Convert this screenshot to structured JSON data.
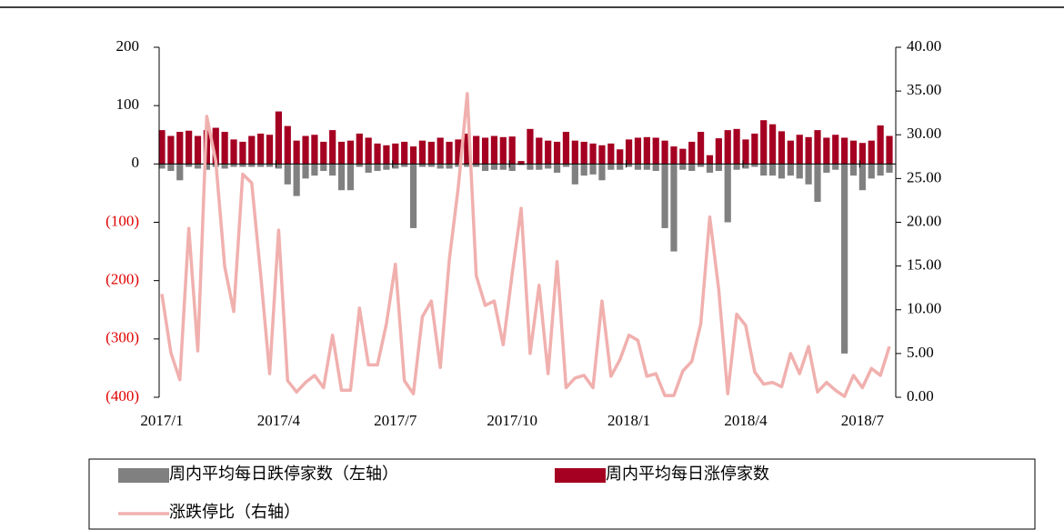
{
  "chart_data": {
    "type": "bar-line",
    "categories": [
      "2017/1",
      null,
      null,
      null,
      null,
      null,
      null,
      null,
      null,
      null,
      null,
      null,
      null,
      "2017/4",
      null,
      null,
      null,
      null,
      null,
      null,
      null,
      null,
      null,
      null,
      null,
      null,
      "2017/7",
      null,
      null,
      null,
      null,
      null,
      null,
      null,
      null,
      null,
      null,
      null,
      null,
      "2017/10",
      null,
      null,
      null,
      null,
      null,
      null,
      null,
      null,
      null,
      null,
      null,
      null,
      "2018/1",
      null,
      null,
      null,
      null,
      null,
      null,
      null,
      null,
      null,
      null,
      null,
      null,
      "2018/4",
      null,
      null,
      null,
      null,
      null,
      null,
      null,
      null,
      null,
      null,
      null,
      null,
      "2018/7",
      null,
      null,
      null
    ],
    "series": [
      {
        "name": "周内平均每日跌停家数（左轴）",
        "color": "#808080",
        "axis": "y",
        "kind": "bar",
        "values": [
          -8,
          -12,
          -28,
          -5,
          -8,
          -10,
          -5,
          -8,
          -5,
          -5,
          -5,
          -5,
          -5,
          -8,
          -35,
          -55,
          -25,
          -20,
          -12,
          -20,
          -45,
          -45,
          -5,
          -15,
          -12,
          -10,
          -8,
          -5,
          -110,
          -5,
          -5,
          -8,
          -8,
          -5,
          -5,
          -5,
          -12,
          -10,
          -10,
          -12,
          -2,
          -10,
          -10,
          -8,
          -15,
          -5,
          -35,
          -20,
          -18,
          -28,
          -10,
          -10,
          -5,
          -10,
          -10,
          -12,
          -110,
          -150,
          -10,
          -12,
          -5,
          -15,
          -12,
          -100,
          -10,
          -8,
          -5,
          -20,
          -20,
          -25,
          -20,
          -25,
          -35,
          -65,
          -15,
          -10,
          -325,
          -20,
          -45,
          -25,
          -20,
          -15
        ]
      },
      {
        "name": "周内平均每日涨停家数",
        "color": "#a50021",
        "axis": "y",
        "kind": "bar",
        "values": [
          58,
          48,
          55,
          57,
          48,
          58,
          62,
          55,
          42,
          38,
          48,
          52,
          50,
          90,
          65,
          40,
          48,
          50,
          38,
          58,
          38,
          40,
          52,
          45,
          35,
          32,
          35,
          38,
          30,
          40,
          38,
          45,
          38,
          42,
          52,
          48,
          45,
          48,
          46,
          47,
          5,
          60,
          45,
          40,
          38,
          55,
          40,
          38,
          35,
          32,
          35,
          25,
          42,
          45,
          46,
          45,
          40,
          30,
          26,
          38,
          55,
          15,
          44,
          58,
          60,
          42,
          52,
          75,
          68,
          56,
          40,
          50,
          46,
          58,
          45,
          50,
          45,
          40,
          36,
          40,
          66,
          48
        ]
      },
      {
        "name": "涨跌停比（右轴）",
        "color": "#f0b0ae",
        "axis": "y2",
        "kind": "line",
        "values": [
          11.8,
          5.1,
          2,
          19.3,
          5.3,
          32.1,
          27,
          14.9,
          9.8,
          25.5,
          24.5,
          14,
          2.7,
          19.1,
          1.9,
          0.6,
          1.7,
          2.5,
          1.1,
          7.1,
          0.8,
          0.8,
          10.2,
          3.7,
          3.7,
          8.4,
          15.2,
          1.9,
          0.4,
          9.2,
          11,
          3.4,
          15.7,
          24,
          34.7,
          13.9,
          10.5,
          11,
          6,
          14.1,
          21.6,
          5,
          12.8,
          2.7,
          15.5,
          1.1,
          2.2,
          2.5,
          1.1,
          11,
          2.4,
          4.3,
          7.1,
          6.5,
          2.4,
          2.7,
          0.2,
          0.2,
          3,
          4.1,
          8.4,
          20.6,
          12.3,
          0.4,
          9.5,
          8.2,
          2.9,
          1.5,
          1.7,
          1.2,
          5,
          2.7,
          5.8,
          0.6,
          1.7,
          0.8,
          0.1,
          2.5,
          1.1,
          3.3,
          2.5,
          5.8
        ]
      }
    ],
    "ylim": [
      -400,
      200
    ],
    "yticks": [
      {
        "value": -400,
        "label": "(400)"
      },
      {
        "value": -300,
        "label": "(300)"
      },
      {
        "value": -200,
        "label": "(200)"
      },
      {
        "value": -100,
        "label": "(100)"
      },
      0,
      100,
      200
    ],
    "y2lim": [
      0,
      40
    ],
    "y2ticks": [
      {
        "value": 0,
        "label": "0.00"
      },
      {
        "value": 5,
        "label": "5.00"
      },
      {
        "value": 10,
        "label": "10.00"
      },
      {
        "value": 15,
        "label": "15.00"
      },
      {
        "value": 20,
        "label": "20.00"
      },
      {
        "value": 25,
        "label": "25.00"
      },
      {
        "value": 30,
        "label": "30.00"
      },
      {
        "value": 35,
        "label": "35.00"
      },
      {
        "value": 40,
        "label": "40.00"
      }
    ],
    "legend": "bottom"
  }
}
